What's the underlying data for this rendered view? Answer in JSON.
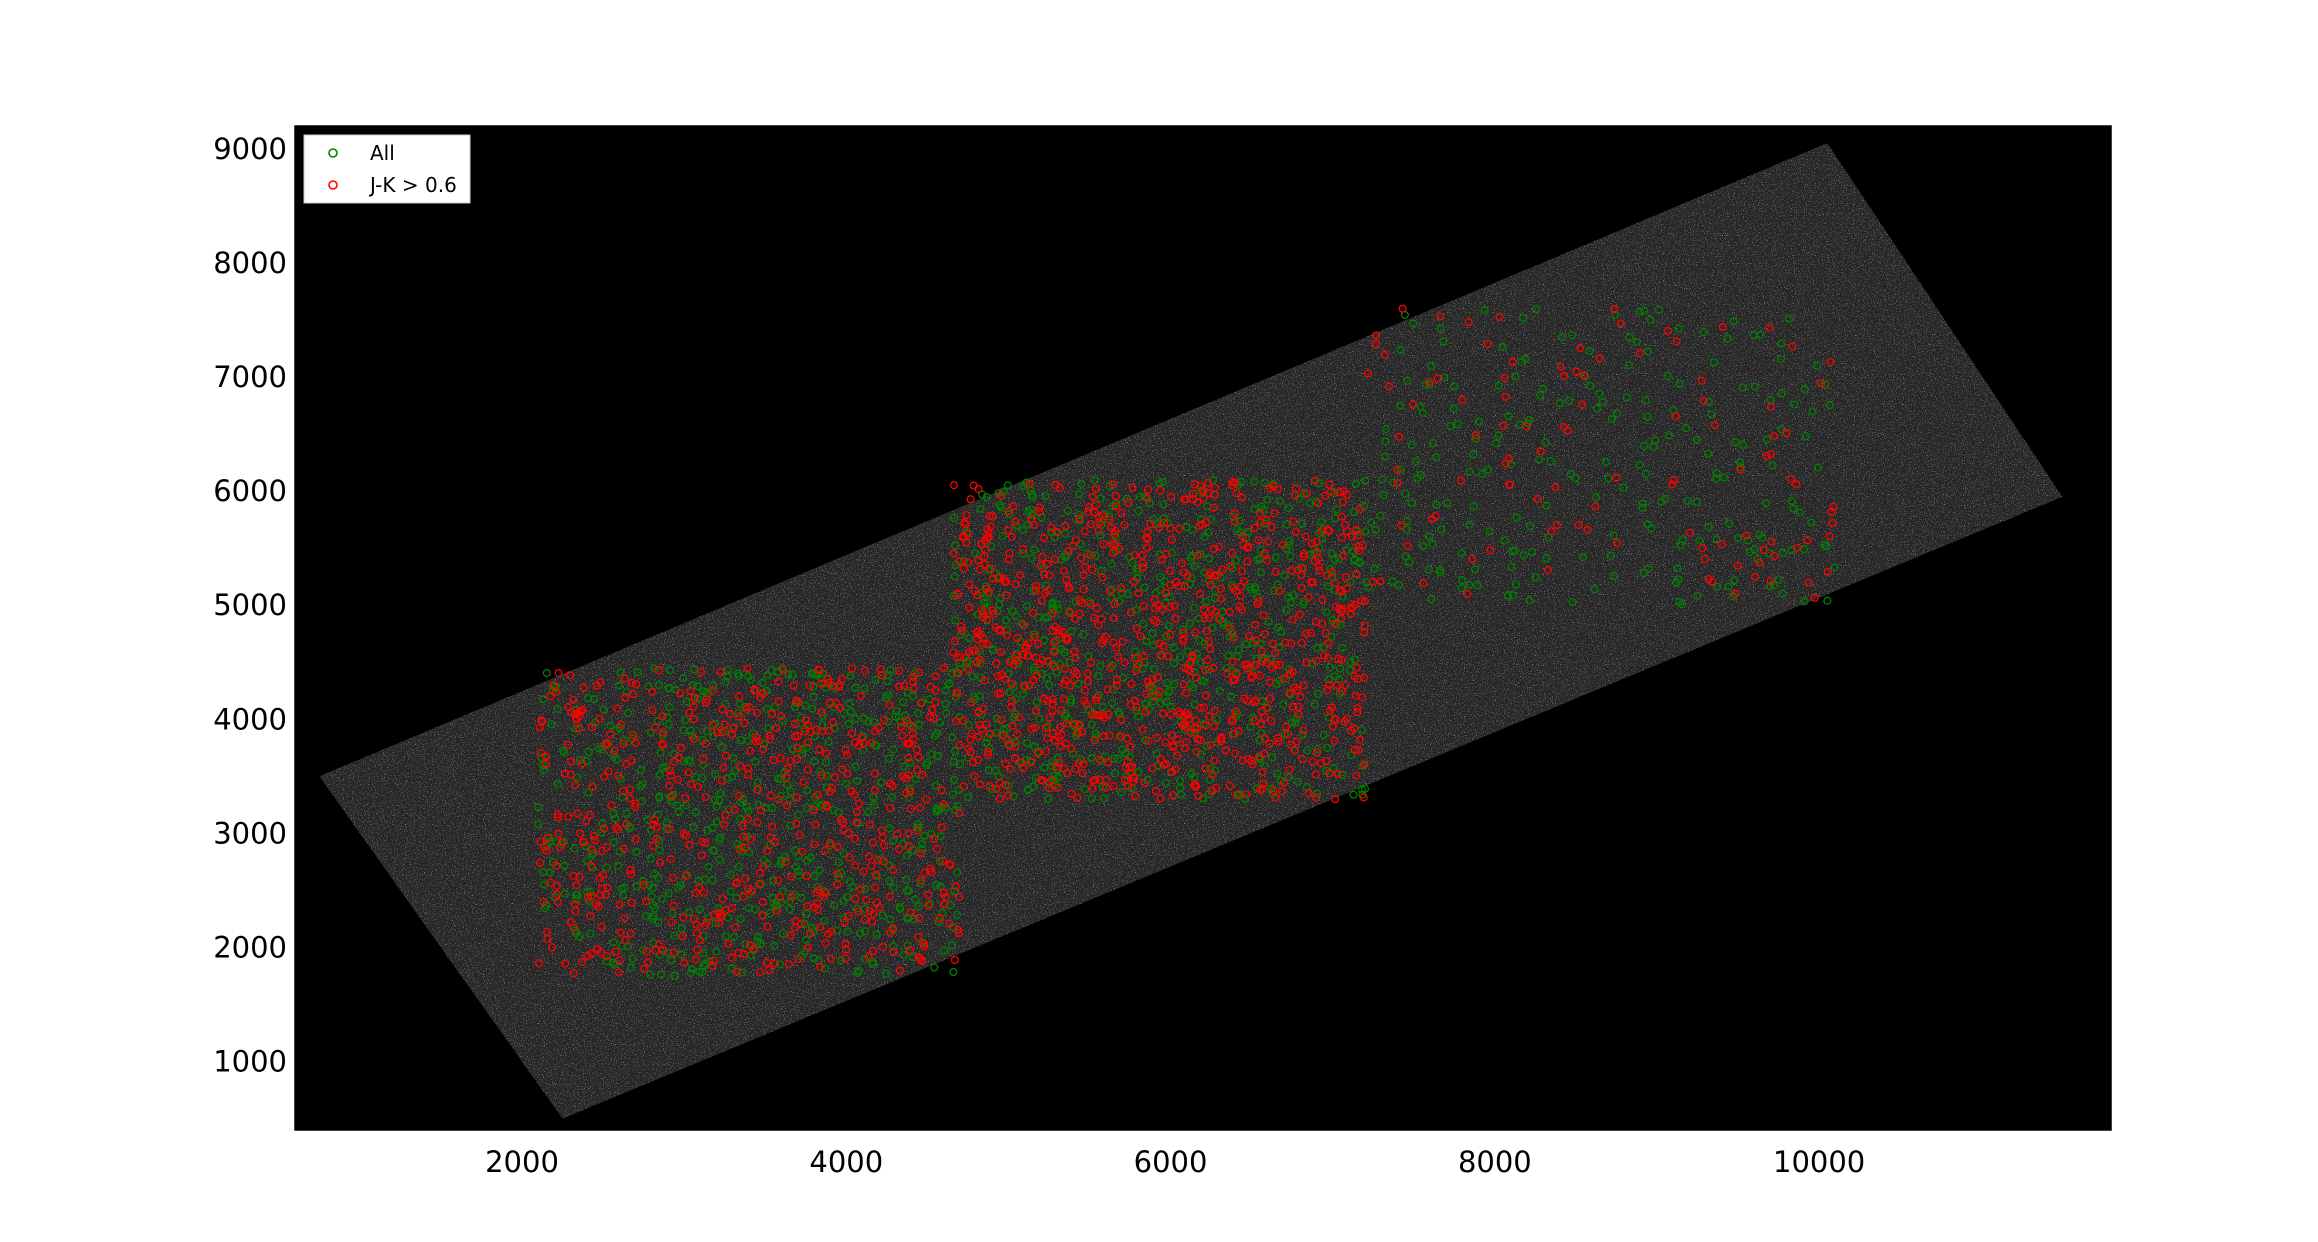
{
  "chart_data": {
    "type": "scatter",
    "title": "",
    "xlabel": "",
    "ylabel": "",
    "xlim": [
      600,
      11800
    ],
    "ylim": [
      400,
      9200
    ],
    "xticks": [
      2000,
      4000,
      6000,
      8000,
      10000
    ],
    "yticks": [
      1000,
      2000,
      3000,
      4000,
      5000,
      6000,
      7000,
      8000,
      9000
    ],
    "grid": false,
    "background": "grayscale sky image (black field with tilted mosaic strip)",
    "legend": {
      "placement": "top-left",
      "entries": [
        {
          "label": "All",
          "color": "#008000",
          "marker": "open-circle"
        },
        {
          "label": "J-K > 0.6",
          "color": "#ff0000",
          "marker": "open-circle"
        }
      ]
    },
    "image_footprint": {
      "corners": [
        [
          750,
          3500
        ],
        [
          2250,
          500
        ],
        [
          11500,
          5950
        ],
        [
          10050,
          9050
        ]
      ]
    },
    "series": [
      {
        "name": "All",
        "color": "#008000",
        "fields": [
          {
            "xrange": [
              2100,
              4700
            ],
            "yrange": [
              1750,
              4450
            ],
            "density": "high"
          },
          {
            "xrange": [
              4650,
              7200
            ],
            "yrange": [
              3300,
              6100
            ],
            "density": "high"
          },
          {
            "xrange": [
              7200,
              10100
            ],
            "yrange": [
              5000,
              7600
            ],
            "density": "medium"
          },
          {
            "xrange": [
              9100,
              10100
            ],
            "yrange": [
              5000,
              5600
            ],
            "density": "medium"
          }
        ]
      },
      {
        "name": "J-K > 0.6",
        "color": "#ff0000",
        "fields": [
          {
            "xrange": [
              2100,
              4700
            ],
            "yrange": [
              1750,
              4450
            ],
            "density": "high"
          },
          {
            "xrange": [
              4650,
              7200
            ],
            "yrange": [
              3300,
              6100
            ],
            "density": "very-high"
          },
          {
            "xrange": [
              7200,
              10100
            ],
            "yrange": [
              5000,
              7600
            ],
            "density": "low"
          },
          {
            "xrange": [
              9100,
              10100
            ],
            "yrange": [
              5000,
              5600
            ],
            "density": "low"
          }
        ]
      }
    ]
  }
}
